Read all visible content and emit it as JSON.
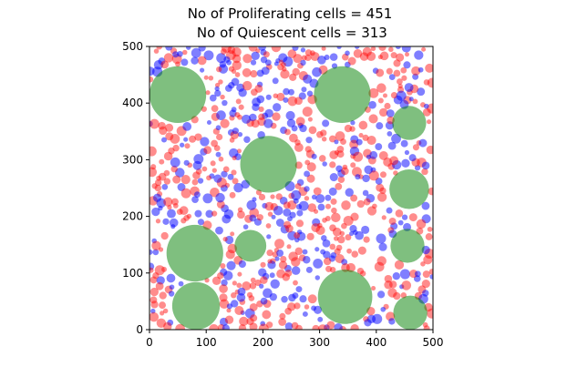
{
  "chart_data": {
    "type": "scatter",
    "title_lines": [
      "No of Proliferating cells = 451",
      " No of Quiescent cells = 313"
    ],
    "xlabel": "",
    "ylabel": "",
    "xlim": [
      0,
      500
    ],
    "ylim": [
      0,
      500
    ],
    "x_ticks": [
      0,
      100,
      200,
      300,
      400,
      500
    ],
    "y_ticks": [
      0,
      100,
      200,
      300,
      400,
      500
    ],
    "x_tick_labels": [
      "0",
      "100",
      "200",
      "300",
      "400",
      "500"
    ],
    "y_tick_labels": [
      "0",
      "100",
      "200",
      "300",
      "400",
      "500"
    ],
    "grid": false,
    "aspect": "equal",
    "colors": {
      "proliferating": "#ff0000",
      "quiescent": "#0000ff",
      "large": "#008000"
    },
    "counts": {
      "proliferating": 451,
      "quiescent": 313
    },
    "large_cells": [
      {
        "x": 50,
        "y": 415,
        "r": 50
      },
      {
        "x": 340,
        "y": 415,
        "r": 50
      },
      {
        "x": 458,
        "y": 365,
        "r": 30
      },
      {
        "x": 210,
        "y": 292,
        "r": 50
      },
      {
        "x": 458,
        "y": 248,
        "r": 35
      },
      {
        "x": 80,
        "y": 135,
        "r": 50
      },
      {
        "x": 178,
        "y": 148,
        "r": 28
      },
      {
        "x": 455,
        "y": 148,
        "r": 30
      },
      {
        "x": 345,
        "y": 58,
        "r": 48
      },
      {
        "x": 82,
        "y": 42,
        "r": 42
      },
      {
        "x": 460,
        "y": 30,
        "r": 30
      }
    ],
    "small_cell_radius_range": [
      4,
      9
    ]
  }
}
